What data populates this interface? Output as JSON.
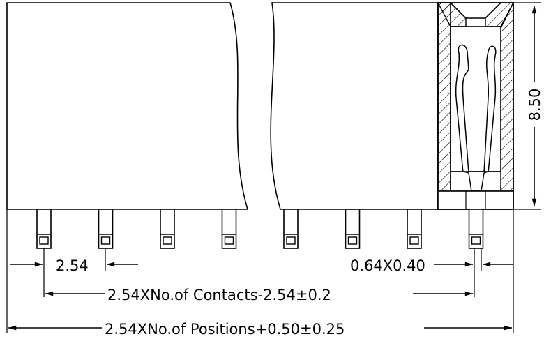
{
  "dimensions": {
    "height": "8.50",
    "pitch": "2.54",
    "pin_section": "0.64X0.40",
    "contacts_span": "2.54XNo.of Contacts-2.54±0.2",
    "overall_length": "2.54XNo.of Positions+0.50±0.25"
  },
  "pin_count_shown": 8
}
